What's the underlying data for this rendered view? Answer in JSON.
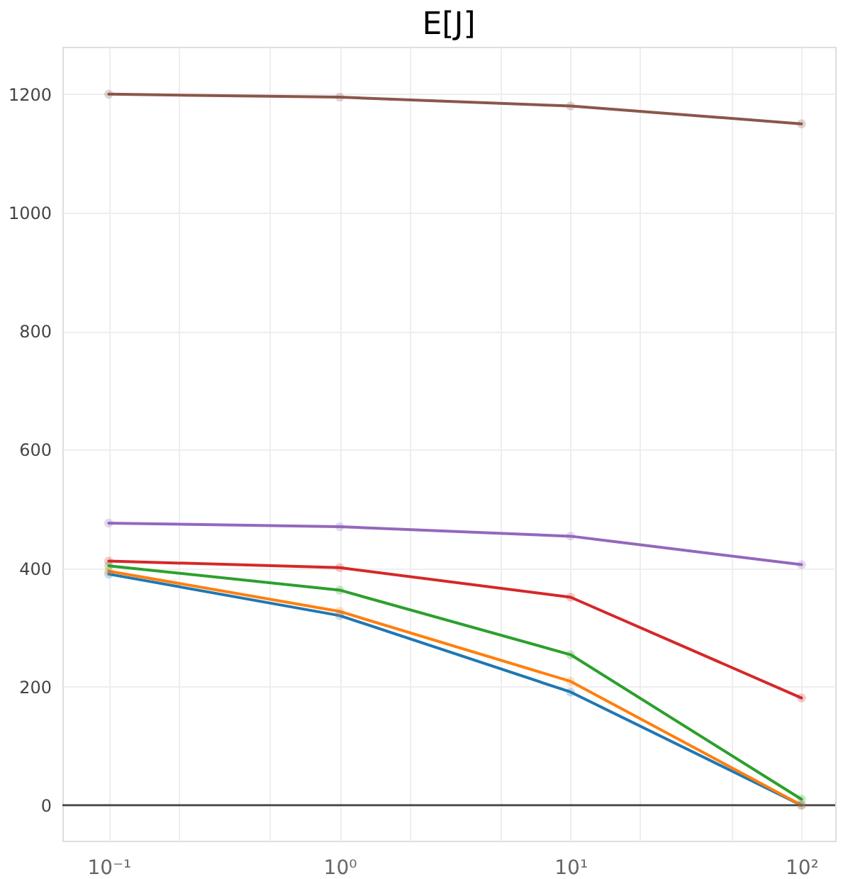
{
  "chart_data": {
    "type": "line",
    "title": "E[J]",
    "x": [
      0.1,
      1,
      10,
      100
    ],
    "series": [
      {
        "color": "#1f77b4",
        "values": [
          390,
          320,
          191,
          0
        ]
      },
      {
        "color": "#ff7f0e",
        "values": [
          395,
          327,
          209,
          0
        ]
      },
      {
        "color": "#2ca02c",
        "values": [
          404,
          363,
          254,
          10
        ]
      },
      {
        "color": "#d62728",
        "values": [
          412,
          401,
          351,
          181
        ]
      },
      {
        "color": "#9467bd",
        "values": [
          476,
          470,
          454,
          406
        ]
      },
      {
        "color": "#8c564b",
        "values": [
          1200,
          1195,
          1180,
          1150
        ]
      }
    ],
    "log": "x",
    "xlim": [
      0.063,
      140
    ],
    "xticks": [
      {
        "value": 0.1,
        "label": "10⁻¹"
      },
      {
        "value": 0.2,
        "label": null
      },
      {
        "value": 0.5,
        "label": null
      },
      {
        "value": 1,
        "label": "10⁰"
      },
      {
        "value": 2,
        "label": null
      },
      {
        "value": 5,
        "label": null
      },
      {
        "value": 10,
        "label": "10¹"
      },
      {
        "value": 20,
        "label": null
      },
      {
        "value": 50,
        "label": null
      },
      {
        "value": 100,
        "label": "10²"
      }
    ],
    "ylim": [
      -60,
      1280
    ],
    "yticks": [
      0,
      200,
      400,
      600,
      800,
      1000,
      1200
    ],
    "grid": true,
    "marker": "circle",
    "line_style": "solid",
    "ref_lines": [
      {
        "axis": "y",
        "value": 0,
        "color": "#444444"
      }
    ]
  }
}
